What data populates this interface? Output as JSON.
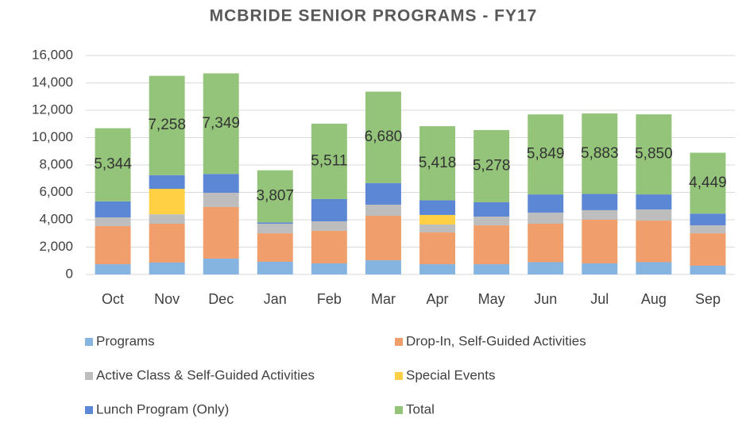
{
  "chart_data": {
    "type": "stacked_bar",
    "title": "MCBRIDE SENIOR PROGRAMS - FY17",
    "categories": [
      "Oct",
      "Nov",
      "Dec",
      "Jan",
      "Feb",
      "Mar",
      "Apr",
      "May",
      "Jun",
      "Jul",
      "Aug",
      "Sep"
    ],
    "series": [
      {
        "name": "Programs",
        "color": "#86b4e0",
        "values": [
          750,
          870,
          1160,
          930,
          810,
          1040,
          750,
          750,
          900,
          810,
          900,
          640
        ]
      },
      {
        "name": "Drop-In, Self-Guided Activities",
        "color": "#f09f6c",
        "values": [
          2790,
          2840,
          3770,
          2080,
          2380,
          3250,
          2320,
          2840,
          2810,
          3190,
          3040,
          2370
        ]
      },
      {
        "name": "Active Class & Self-Guided Activities",
        "color": "#bdbdbd",
        "values": [
          630,
          690,
          1040,
          700,
          690,
          810,
          580,
          640,
          810,
          700,
          810,
          580
        ]
      },
      {
        "name": "Special Events",
        "color": "#ffd043",
        "values": [
          0,
          1860,
          0,
          0,
          0,
          0,
          700,
          0,
          0,
          0,
          0,
          0
        ]
      },
      {
        "name": "Lunch Program (Only)",
        "color": "#5b87d4",
        "values": [
          1174,
          998,
          1379,
          97,
          1631,
          1580,
          1068,
          1048,
          1329,
          1183,
          1100,
          859
        ]
      },
      {
        "name": "Total",
        "color": "#94c47a",
        "values": [
          5344,
          7258,
          7349,
          3807,
          5511,
          6680,
          5418,
          5278,
          5849,
          5883,
          5850,
          4449
        ],
        "value_labels": [
          "5,344",
          "7,258",
          "7,349",
          "3,807",
          "5,511",
          "6,680",
          "5,418",
          "5,278",
          "5,849",
          "5,883",
          "5,850",
          "4,449"
        ]
      }
    ],
    "ylim": [
      0,
      16000
    ],
    "yticks": [
      0,
      {
        "value": 2000,
        "label": "2,000"
      },
      {
        "value": 4000,
        "label": "4,000"
      },
      {
        "value": 6000,
        "label": "6,000"
      },
      {
        "value": 8000,
        "label": "8,000"
      },
      {
        "value": 10000,
        "label": "10,000"
      },
      {
        "value": 12000,
        "label": "12,000"
      },
      {
        "value": 14000,
        "label": "14,000"
      },
      {
        "value": 16000,
        "label": "16,000"
      }
    ],
    "grid": true,
    "legend": "bottom"
  }
}
